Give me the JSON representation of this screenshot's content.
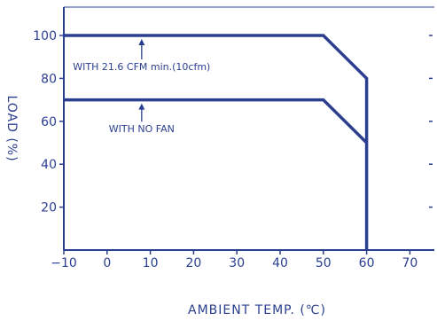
{
  "chart_data": {
    "type": "line",
    "xlabel": "AMBIENT TEMP. (℃)",
    "ylabel": "LOAD (%)",
    "xlim": [
      -10,
      75
    ],
    "ylim": [
      0,
      110
    ],
    "x_ticks": [
      -10,
      0,
      10,
      20,
      30,
      40,
      50,
      60,
      70
    ],
    "y_ticks": [
      20,
      40,
      60,
      80,
      100
    ],
    "grid": false,
    "series": [
      {
        "name": "WITH 21.6 CFM min.(10cfm)",
        "x": [
          -10,
          50,
          60,
          60
        ],
        "y": [
          100,
          100,
          80,
          0
        ]
      },
      {
        "name": "WITH NO FAN",
        "x": [
          -10,
          50,
          60
        ],
        "y": [
          70,
          70,
          50
        ]
      }
    ],
    "annotations": [
      {
        "text": "WITH 21.6 CFM min.(10cfm)",
        "arrow_x": 8,
        "arrow_from_y": 88,
        "arrow_to_y": 100
      },
      {
        "text": "WITH NO FAN",
        "arrow_x": 8,
        "arrow_from_y": 59,
        "arrow_to_y": 70
      }
    ],
    "colors": {
      "line": "#2b3f91",
      "axis": "#2b3f91",
      "text": "#2b3f91"
    }
  }
}
